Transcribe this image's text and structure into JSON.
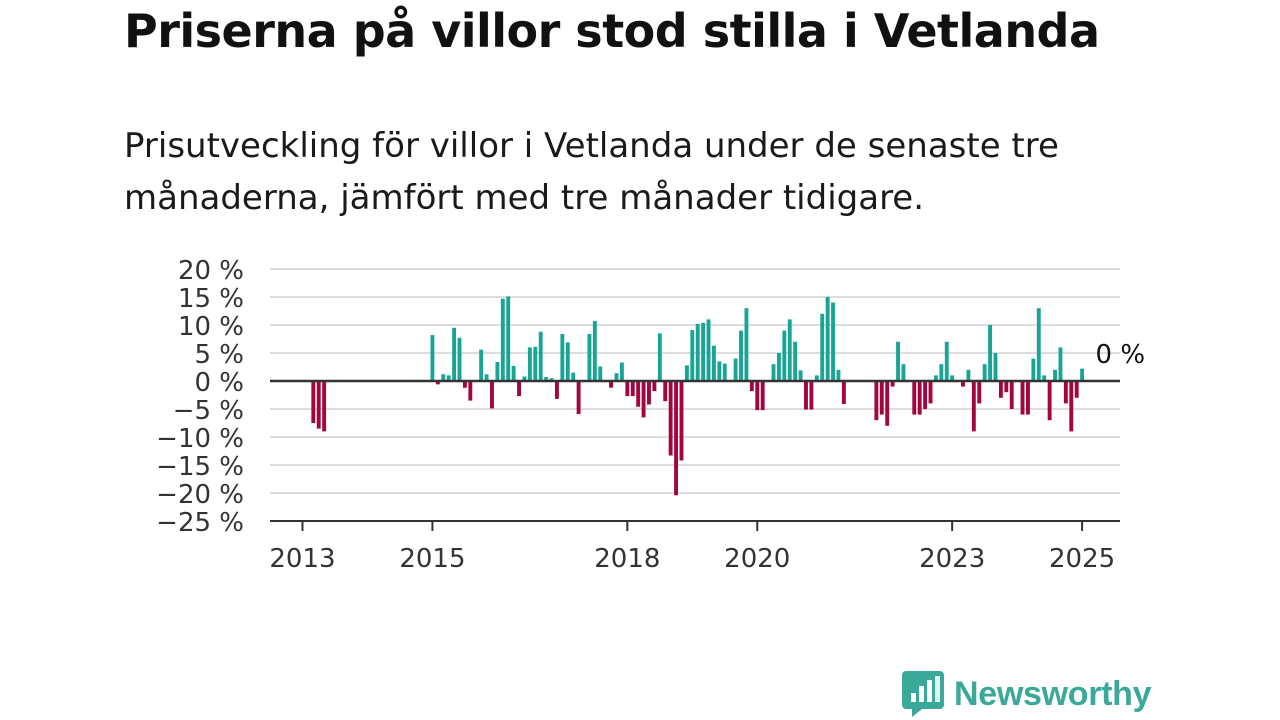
{
  "title": "Priserna på villor stod stilla i Vetlanda",
  "subtitle": "Prisutveckling för villor i Vetlanda under de senaste tre månaderna, jämfört med tre månader tidigare.",
  "brand": {
    "name": "Newsworthy",
    "icon": "newsworthy-logo-icon",
    "color": "#3aa99a"
  },
  "colors": {
    "positive": "#19a596",
    "negative": "#a3063f",
    "grid": "#dddddd",
    "axis": "#333333",
    "text": "#333333"
  },
  "chart_data": {
    "type": "bar",
    "title": "Priserna på villor stod stilla i Vetlanda",
    "subtitle": "Prisutveckling för villor i Vetlanda under de senaste tre månaderna, jämfört med tre månader tidigare.",
    "xlabel": "",
    "ylabel": "",
    "ylim": [
      -25,
      20
    ],
    "yticks": [
      20,
      15,
      10,
      5,
      0,
      -5,
      -10,
      -15,
      -20,
      -25
    ],
    "ytick_labels": [
      "20 %",
      "15 %",
      "10 %",
      "5 %",
      "0 %",
      "−5 %",
      "−10 %",
      "−15 %",
      "−20 %",
      "−25 %"
    ],
    "xlim": [
      "2012-07",
      "2025-08"
    ],
    "xticks": [
      "2013",
      "2015",
      "2018",
      "2020",
      "2023",
      "2025"
    ],
    "grid": true,
    "legend": "none",
    "annotation": {
      "x": "2025-02",
      "label": "0 %"
    },
    "x": [
      "2013-03",
      "2013-04",
      "2013-05",
      "2015-01",
      "2015-02",
      "2015-03",
      "2015-04",
      "2015-05",
      "2015-06",
      "2015-07",
      "2015-08",
      "2015-09",
      "2015-10",
      "2015-11",
      "2015-12",
      "2016-01",
      "2016-02",
      "2016-03",
      "2016-04",
      "2016-05",
      "2016-06",
      "2016-07",
      "2016-08",
      "2016-09",
      "2016-10",
      "2016-11",
      "2016-12",
      "2017-01",
      "2017-02",
      "2017-03",
      "2017-04",
      "2017-05",
      "2017-06",
      "2017-07",
      "2017-08",
      "2017-09",
      "2017-10",
      "2017-11",
      "2017-12",
      "2018-01",
      "2018-02",
      "2018-03",
      "2018-04",
      "2018-05",
      "2018-06",
      "2018-07",
      "2018-08",
      "2018-09",
      "2018-10",
      "2018-11",
      "2018-12",
      "2019-01",
      "2019-02",
      "2019-03",
      "2019-04",
      "2019-05",
      "2019-06",
      "2019-07",
      "2019-08",
      "2019-09",
      "2019-10",
      "2019-11",
      "2019-12",
      "2020-01",
      "2020-02",
      "2020-03",
      "2020-04",
      "2020-05",
      "2020-06",
      "2020-07",
      "2020-08",
      "2020-09",
      "2020-10",
      "2020-11",
      "2020-12",
      "2021-01",
      "2021-02",
      "2021-03",
      "2021-04",
      "2021-05",
      "2021-11",
      "2021-12",
      "2022-01",
      "2022-02",
      "2022-03",
      "2022-04",
      "2022-05",
      "2022-06",
      "2022-07",
      "2022-08",
      "2022-09",
      "2022-10",
      "2022-11",
      "2022-12",
      "2023-01",
      "2023-02",
      "2023-03",
      "2023-04",
      "2023-05",
      "2023-06",
      "2023-07",
      "2023-08",
      "2023-09",
      "2023-10",
      "2023-11",
      "2023-12",
      "2024-01",
      "2024-02",
      "2024-03",
      "2024-04",
      "2024-05",
      "2024-06",
      "2024-07",
      "2024-08",
      "2024-09",
      "2024-10",
      "2024-11",
      "2024-12",
      "2025-01",
      "2025-02"
    ],
    "values": [
      -7.5,
      -8.5,
      -9,
      8.2,
      -0.6,
      1.2,
      1,
      9.5,
      7.7,
      -1.2,
      -3.5,
      0,
      5.6,
      1.2,
      -4.9,
      3.4,
      14.7,
      15.1,
      2.7,
      -2.7,
      0.8,
      6,
      6.1,
      8.8,
      0.7,
      0.5,
      -3.2,
      8.4,
      6.9,
      1.5,
      -5.9,
      0,
      8.4,
      10.7,
      2.6,
      0,
      -1.2,
      1.4,
      3.3,
      -2.7,
      -2.7,
      -4.6,
      -6.5,
      -4.2,
      -1.8,
      8.5,
      -3.6,
      -13.3,
      -20.4,
      -14.2,
      2.8,
      9.1,
      10.2,
      10.4,
      11,
      6.3,
      3.5,
      3.1,
      0,
      4,
      9,
      13,
      -1.8,
      -5.2,
      -5.2,
      0,
      3,
      5,
      9,
      11,
      7,
      1.9,
      -5.1,
      -5.1,
      1,
      12,
      15,
      14,
      2,
      -4.1,
      -7,
      -6,
      -8,
      -1,
      7,
      3,
      0,
      -6,
      -6,
      -5,
      -4,
      1,
      3,
      7,
      1,
      0,
      -1,
      2,
      -9,
      -4,
      3,
      10,
      5,
      -3,
      -2,
      -5,
      0,
      -6,
      -6,
      4,
      13,
      1,
      -7,
      2,
      6,
      -4,
      -9,
      -3,
      2.2,
      0
    ]
  }
}
